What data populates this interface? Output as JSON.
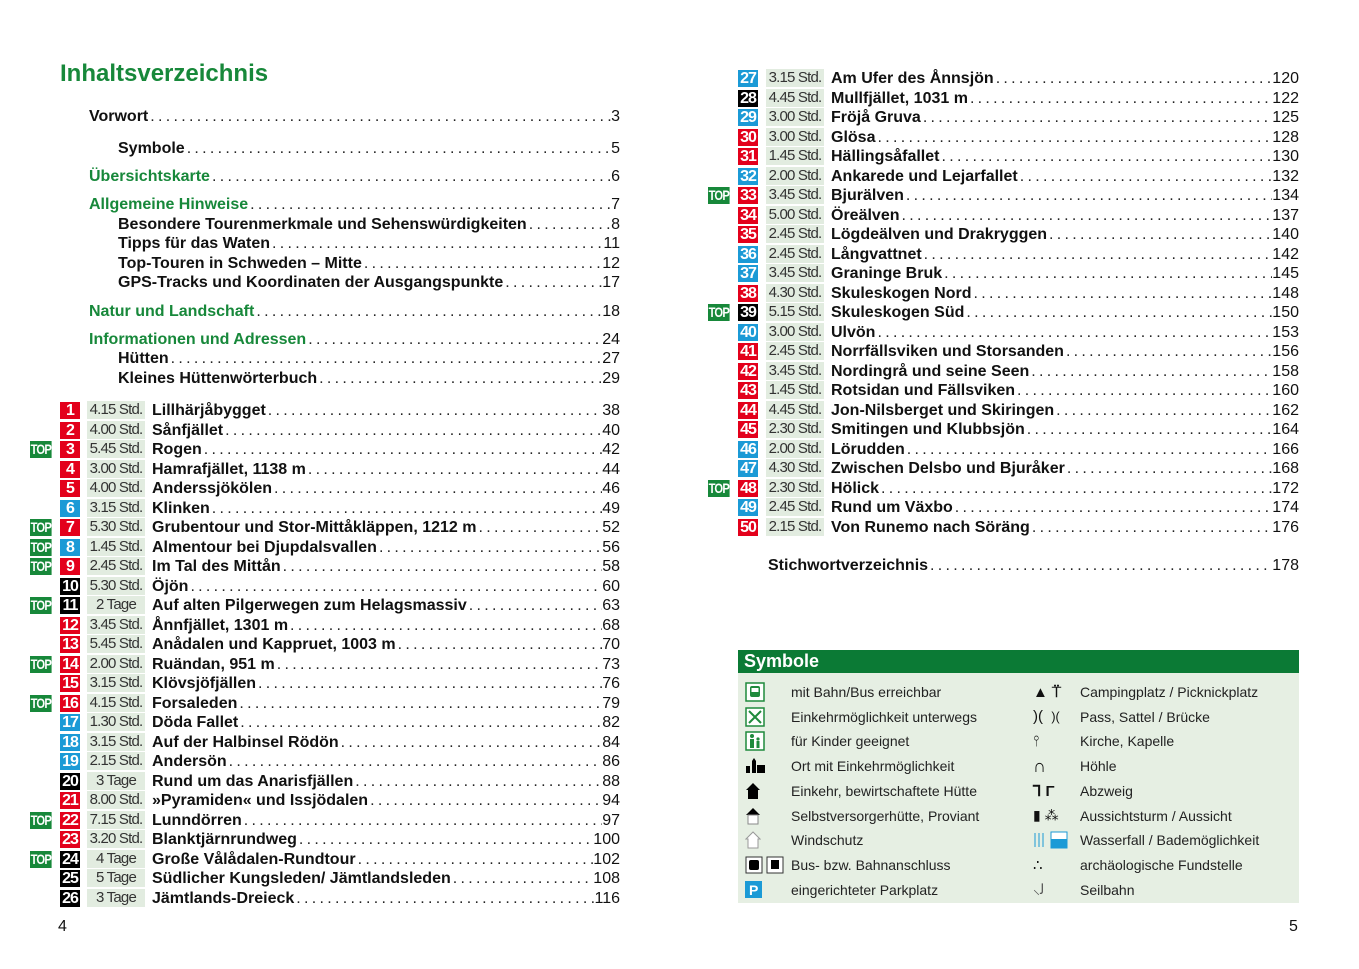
{
  "colors": {
    "green": "#17883a",
    "red": "#e3001b",
    "blue": "#1b9ad6",
    "black": "#000000",
    "time_bg": "#e2ece0",
    "symbol_bg": "#e6efe3"
  },
  "title": "Inhaltsverzeichnis",
  "front_matter": [
    {
      "label": "Vorwort",
      "page": "3",
      "style": "plain",
      "indent": false
    },
    {
      "label": "Symbole",
      "page": "5",
      "style": "plain",
      "indent": true
    },
    {
      "label": "Übersichtskarte",
      "page": "6",
      "style": "green",
      "indent": false
    },
    {
      "label": "Allgemeine Hinweise",
      "page": "7",
      "style": "green",
      "indent": false
    },
    {
      "label": "Besondere Tourenmerkmale und Sehenswürdigkeiten",
      "page": "8",
      "style": "plain",
      "indent": true
    },
    {
      "label": "Tipps für das Waten",
      "page": "11",
      "style": "plain",
      "indent": true
    },
    {
      "label": "Top-Touren in Schweden – Mitte",
      "page": "12",
      "style": "plain",
      "indent": true
    },
    {
      "label": "GPS-Tracks und Koordinaten der Ausgangspunkte",
      "page": "17",
      "style": "plain",
      "indent": true
    },
    {
      "label": "Natur und Landschaft",
      "page": "18",
      "style": "green",
      "indent": false
    },
    {
      "label": "Informationen und Adressen",
      "page": "24",
      "style": "green",
      "indent": false
    },
    {
      "label": "Hütten",
      "page": "27",
      "style": "plain",
      "indent": true
    },
    {
      "label": "Kleines Hüttenwörterbuch",
      "page": "29",
      "style": "plain",
      "indent": true
    }
  ],
  "top_label": "TOP",
  "tours": [
    {
      "num": "1",
      "color": "red",
      "top": false,
      "time": "4.15 Std.",
      "title": "Lillhärjåbygget",
      "page": "38"
    },
    {
      "num": "2",
      "color": "red",
      "top": false,
      "time": "4.00 Std.",
      "title": "Sånfjället",
      "page": "40"
    },
    {
      "num": "3",
      "color": "red",
      "top": true,
      "time": "5.45 Std.",
      "title": "Rogen",
      "page": "42"
    },
    {
      "num": "4",
      "color": "red",
      "top": false,
      "time": "3.00 Std.",
      "title": "Hamrafjället, 1138 m",
      "page": "44"
    },
    {
      "num": "5",
      "color": "red",
      "top": false,
      "time": "4.00 Std.",
      "title": "Anderssjökölen",
      "page": "46"
    },
    {
      "num": "6",
      "color": "blue",
      "top": false,
      "time": "3.15 Std.",
      "title": "Klinken",
      "page": "49"
    },
    {
      "num": "7",
      "color": "red",
      "top": true,
      "time": "5.30 Std.",
      "title": "Grubentour und Stor-Mittåkläppen, 1212 m",
      "page": "52"
    },
    {
      "num": "8",
      "color": "blue",
      "top": true,
      "time": "1.45 Std.",
      "title": "Almentour bei Djupdalsvallen",
      "page": "56"
    },
    {
      "num": "9",
      "color": "red",
      "top": true,
      "time": "2.45 Std.",
      "title": "Im Tal des Mittån",
      "page": "58"
    },
    {
      "num": "10",
      "color": "black",
      "top": false,
      "time": "5.30 Std.",
      "title": "Öjön",
      "page": "60"
    },
    {
      "num": "11",
      "color": "black",
      "top": true,
      "time": "2 Tage",
      "title": "Auf alten Pilgerwegen zum Helagsmassiv",
      "page": "63"
    },
    {
      "num": "12",
      "color": "red",
      "top": false,
      "time": "3.45 Std.",
      "title": "Ånnfjället, 1301 m",
      "page": "68"
    },
    {
      "num": "13",
      "color": "red",
      "top": false,
      "time": "5.45 Std.",
      "title": "Anådalen und Kappruet, 1003 m",
      "page": "70"
    },
    {
      "num": "14",
      "color": "red",
      "top": true,
      "time": "2.00 Std.",
      "title": "Ruändan, 951 m",
      "page": "73"
    },
    {
      "num": "15",
      "color": "red",
      "top": false,
      "time": "3.15 Std.",
      "title": "Klövsjöfjällen",
      "page": "76"
    },
    {
      "num": "16",
      "color": "red",
      "top": true,
      "time": "4.15 Std.",
      "title": "Forsaleden",
      "page": "79"
    },
    {
      "num": "17",
      "color": "blue",
      "top": false,
      "time": "1.30 Std.",
      "title": "Döda Fallet",
      "page": "82"
    },
    {
      "num": "18",
      "color": "blue",
      "top": false,
      "time": "3.15 Std.",
      "title": "Auf der Halbinsel Rödön",
      "page": "84"
    },
    {
      "num": "19",
      "color": "blue",
      "top": false,
      "time": "2.15 Std.",
      "title": "Andersön",
      "page": "86"
    },
    {
      "num": "20",
      "color": "black",
      "top": false,
      "time": "3 Tage",
      "title": "Rund um das Anarisfjällen",
      "page": "88"
    },
    {
      "num": "21",
      "color": "red",
      "top": false,
      "time": "8.00 Std.",
      "title": "»Pyramiden« und Issjödalen",
      "page": "94"
    },
    {
      "num": "22",
      "color": "red",
      "top": true,
      "time": "7.15 Std.",
      "title": "Lunndörren",
      "page": "97"
    },
    {
      "num": "23",
      "color": "red",
      "top": false,
      "time": "3.20 Std.",
      "title": "Blanktjärnrundweg",
      "page": "100"
    },
    {
      "num": "24",
      "color": "black",
      "top": true,
      "time": "4 Tage",
      "title": "Große Vålådalen-Rundtour",
      "page": "102"
    },
    {
      "num": "25",
      "color": "black",
      "top": false,
      "time": "5 Tage",
      "title": "Südlicher Kungsleden/ Jämtlandsleden",
      "page": "108"
    },
    {
      "num": "26",
      "color": "black",
      "top": false,
      "time": "3 Tage",
      "title": "Jämtlands-Dreieck",
      "page": "116"
    },
    {
      "num": "27",
      "color": "blue",
      "top": false,
      "time": "3.15 Std.",
      "title": "Am Ufer des Ånnsjön",
      "page": "120"
    },
    {
      "num": "28",
      "color": "black",
      "top": false,
      "time": "4.45 Std.",
      "title": "Mullfjället, 1031 m",
      "page": "122"
    },
    {
      "num": "29",
      "color": "blue",
      "top": false,
      "time": "3.00 Std.",
      "title": "Fröjå Gruva",
      "page": "125"
    },
    {
      "num": "30",
      "color": "red",
      "top": false,
      "time": "3.00 Std.",
      "title": "Glösa",
      "page": "128"
    },
    {
      "num": "31",
      "color": "red",
      "top": false,
      "time": "1.45 Std.",
      "title": "Hällingsåfallet",
      "page": "130"
    },
    {
      "num": "32",
      "color": "blue",
      "top": false,
      "time": "2.00 Std.",
      "title": "Ankarede und Lejarfallet",
      "page": "132"
    },
    {
      "num": "33",
      "color": "red",
      "top": true,
      "time": "3.45 Std.",
      "title": "Bjurälven",
      "page": "134"
    },
    {
      "num": "34",
      "color": "red",
      "top": false,
      "time": "5.00 Std.",
      "title": "Öreälven",
      "page": "137"
    },
    {
      "num": "35",
      "color": "red",
      "top": false,
      "time": "2.45 Std.",
      "title": "Lögdeälven und Drakryggen",
      "page": "140"
    },
    {
      "num": "36",
      "color": "blue",
      "top": false,
      "time": "2.45 Std.",
      "title": "Långvattnet",
      "page": "142"
    },
    {
      "num": "37",
      "color": "blue",
      "top": false,
      "time": "3.45 Std.",
      "title": "Graninge Bruk",
      "page": "145"
    },
    {
      "num": "38",
      "color": "red",
      "top": false,
      "time": "4.30 Std.",
      "title": "Skuleskogen Nord",
      "page": "148"
    },
    {
      "num": "39",
      "color": "black",
      "top": true,
      "time": "5.15 Std.",
      "title": "Skuleskogen Süd",
      "page": "150"
    },
    {
      "num": "40",
      "color": "blue",
      "top": false,
      "time": "3.00 Std.",
      "title": "Ulvön",
      "page": "153"
    },
    {
      "num": "41",
      "color": "red",
      "top": false,
      "time": "2.45 Std.",
      "title": "Norrfällsviken und Storsanden",
      "page": "156"
    },
    {
      "num": "42",
      "color": "red",
      "top": false,
      "time": "3.45 Std.",
      "title": "Nordingrå und seine Seen",
      "page": "158"
    },
    {
      "num": "43",
      "color": "red",
      "top": false,
      "time": "1.45 Std.",
      "title": "Rotsidan und Fällsviken",
      "page": "160"
    },
    {
      "num": "44",
      "color": "red",
      "top": false,
      "time": "4.45 Std.",
      "title": "Jon-Nilsberget und Skiringen",
      "page": "162"
    },
    {
      "num": "45",
      "color": "red",
      "top": false,
      "time": "2.30 Std.",
      "title": "Smitingen und Klubbsjön",
      "page": "164"
    },
    {
      "num": "46",
      "color": "blue",
      "top": false,
      "time": "2.00 Std.",
      "title": "Lörudden",
      "page": "166"
    },
    {
      "num": "47",
      "color": "blue",
      "top": false,
      "time": "4.30 Std.",
      "title": "Zwischen Delsbo und Bjuråker",
      "page": "168"
    },
    {
      "num": "48",
      "color": "red",
      "top": true,
      "time": "2.30 Std.",
      "title": "Hölick",
      "page": "172"
    },
    {
      "num": "49",
      "color": "blue",
      "top": false,
      "time": "2.45 Std.",
      "title": "Rund um Växbo",
      "page": "174"
    },
    {
      "num": "50",
      "color": "red",
      "top": false,
      "time": "2.15 Std.",
      "title": "Von Runemo nach Söräng",
      "page": "176"
    }
  ],
  "index_entry": {
    "label": "Stichwortverzeichnis",
    "page": "178"
  },
  "symbols": {
    "title": "Symbole",
    "left": [
      {
        "icon": "bus-train-icon",
        "label": "mit Bahn/Bus erreichbar"
      },
      {
        "icon": "fork-knife-icon",
        "label": "Einkehrmöglichkeit unterwegs"
      },
      {
        "icon": "family-icon",
        "label": "für Kinder geeignet"
      },
      {
        "icon": "village-icon",
        "label": "Ort mit Einkehrmöglichkeit"
      },
      {
        "icon": "staffed-hut-icon",
        "label": "Einkehr, bewirtschaftete Hütte"
      },
      {
        "icon": "self-catering-hut-icon",
        "label": "Selbstversorgerhütte, Proviant"
      },
      {
        "icon": "shelter-icon",
        "label": "Windschutz"
      },
      {
        "icon": "bus-icon",
        "label": "Bus- bzw. Bahnanschluss"
      },
      {
        "icon": "parking-icon",
        "label": "eingerichteter Parkplatz"
      }
    ],
    "right": [
      {
        "icon": "camping-picnic-icon",
        "label": "Campingplatz / Picknickplatz"
      },
      {
        "icon": "pass-bridge-icon",
        "label": "Pass, Sattel / Brücke"
      },
      {
        "icon": "church-icon",
        "label": "Kirche, Kapelle"
      },
      {
        "icon": "cave-icon",
        "label": "Höhle"
      },
      {
        "icon": "junction-icon",
        "label": "Abzweig"
      },
      {
        "icon": "viewpoint-icon",
        "label": "Aussichtsturm / Aussicht"
      },
      {
        "icon": "waterfall-bathing-icon",
        "label": "Wasserfall / Bademöglichkeit"
      },
      {
        "icon": "archaeology-icon",
        "label": "archäologische Fundstelle"
      },
      {
        "icon": "cable-car-icon",
        "label": "Seilbahn"
      }
    ]
  },
  "page_numbers": {
    "left": "4",
    "right": "5"
  }
}
